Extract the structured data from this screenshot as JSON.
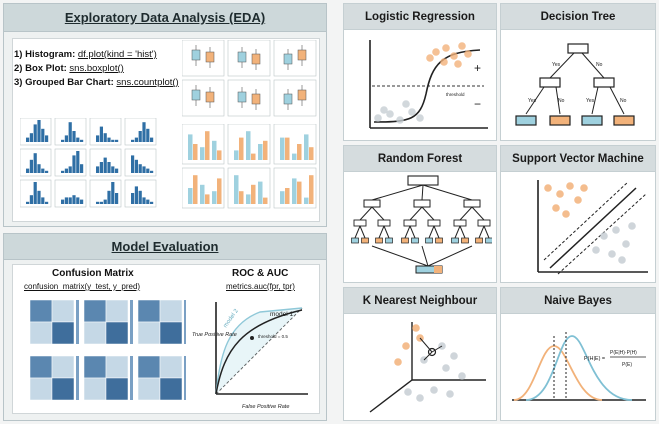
{
  "eda": {
    "title": "Exploratory Data Analysis (EDA)",
    "items": [
      {
        "num": "1) Histogram:",
        "code": "df.plot(kind = 'hist')"
      },
      {
        "num": "2) Box Plot:",
        "code": "sns.boxplot()"
      },
      {
        "num": "3) Grouped Bar Chart:",
        "code": "sns.countplot()"
      }
    ]
  },
  "evaluation": {
    "title": "Model Evaluation",
    "confusion_title": "Confusion Matrix",
    "confusion_code": "confusion_matrix(y_test, y_pred)",
    "roc_title": "ROC & AUC",
    "roc_code": "metrics.auc(fpr, tpr)",
    "roc_ylabel": "True Positive Rate",
    "roc_xlabel": "False Positive Rate",
    "model1": "model 1",
    "model2": "model 2",
    "threshold": "threshold = 0.5"
  },
  "models": {
    "logistic": "Logistic Regression",
    "tree": "Decision Tree",
    "forest": "Random Forest",
    "svm": "Support Vector Machine",
    "knn": "K Nearest Neighbour",
    "bayes": "Naive Bayes",
    "tree_yes": "Yes",
    "tree_no": "No",
    "logistic_plus": "+",
    "logistic_minus": "−",
    "logistic_threshold": "threshold",
    "bayes_formula_lhs": "P(H|E) =",
    "bayes_formula_num": "P(E|H)·P(H)",
    "bayes_formula_den": "P(E)"
  },
  "colors": {
    "orange": "#f2b27a",
    "blue": "#9fd1df",
    "darkblue": "#2f6fa5",
    "gray": "#c7ced3",
    "teal_ink": "#2a2a2a"
  }
}
